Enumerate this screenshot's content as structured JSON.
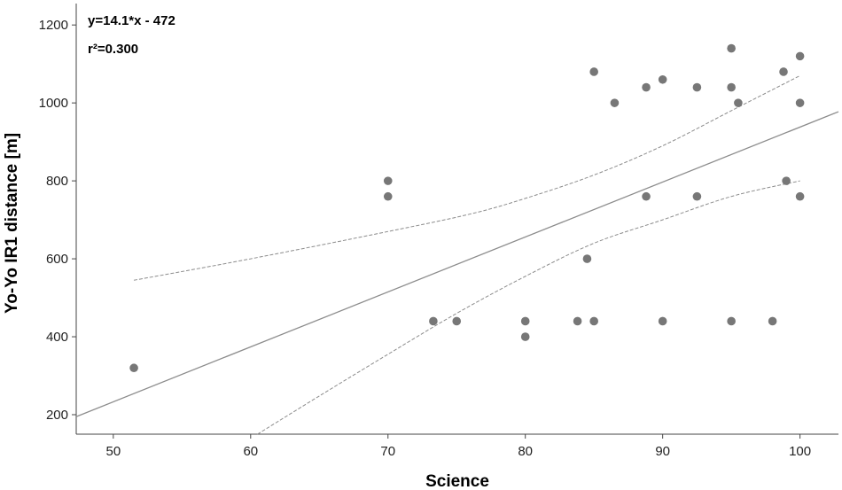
{
  "chart_data": {
    "type": "scatter",
    "xlabel": "Science",
    "ylabel": "Yo-Yo IR1 distance [m]",
    "xlim": [
      47.3,
      102.8
    ],
    "ylim": [
      150,
      1255
    ],
    "xticks": [
      50,
      60,
      70,
      80,
      90,
      100
    ],
    "yticks": [
      200,
      400,
      600,
      800,
      1000,
      1200
    ],
    "annotations": [
      "y=14.1*x - 472",
      "r²=0.300"
    ],
    "regression": {
      "slope": 14.1,
      "intercept": -472
    },
    "points": [
      {
        "x": 51.5,
        "y": 320
      },
      {
        "x": 70,
        "y": 800
      },
      {
        "x": 70,
        "y": 760
      },
      {
        "x": 73.3,
        "y": 440
      },
      {
        "x": 75,
        "y": 440
      },
      {
        "x": 80,
        "y": 440
      },
      {
        "x": 80,
        "y": 400
      },
      {
        "x": 83.8,
        "y": 440
      },
      {
        "x": 84.5,
        "y": 600
      },
      {
        "x": 85,
        "y": 1080
      },
      {
        "x": 85,
        "y": 440
      },
      {
        "x": 86.5,
        "y": 1000
      },
      {
        "x": 88.8,
        "y": 1040
      },
      {
        "x": 88.8,
        "y": 760
      },
      {
        "x": 90,
        "y": 1060
      },
      {
        "x": 90,
        "y": 440
      },
      {
        "x": 92.5,
        "y": 1040
      },
      {
        "x": 92.5,
        "y": 760
      },
      {
        "x": 95,
        "y": 1140
      },
      {
        "x": 95,
        "y": 1040
      },
      {
        "x": 95,
        "y": 440
      },
      {
        "x": 95.5,
        "y": 1000
      },
      {
        "x": 98,
        "y": 440
      },
      {
        "x": 98.8,
        "y": 1080
      },
      {
        "x": 99,
        "y": 800
      },
      {
        "x": 100,
        "y": 1120
      },
      {
        "x": 100,
        "y": 1000
      },
      {
        "x": 100,
        "y": 760
      }
    ],
    "confidence_upper": [
      {
        "x": 51.5,
        "y": 545
      },
      {
        "x": 60,
        "y": 600
      },
      {
        "x": 70,
        "y": 670
      },
      {
        "x": 76,
        "y": 715
      },
      {
        "x": 80,
        "y": 755
      },
      {
        "x": 85,
        "y": 815
      },
      {
        "x": 90,
        "y": 890
      },
      {
        "x": 95,
        "y": 980
      },
      {
        "x": 100,
        "y": 1070
      }
    ],
    "confidence_lower": [
      {
        "x": 60.5,
        "y": 150
      },
      {
        "x": 65,
        "y": 248
      },
      {
        "x": 70,
        "y": 355
      },
      {
        "x": 75,
        "y": 460
      },
      {
        "x": 80,
        "y": 555
      },
      {
        "x": 85,
        "y": 640
      },
      {
        "x": 90,
        "y": 700
      },
      {
        "x": 95,
        "y": 760
      },
      {
        "x": 100,
        "y": 800
      }
    ],
    "grid": false,
    "colors": {
      "points": "#777777",
      "fit_line": "#8c8c8c",
      "ci_line": "#8c8c8c",
      "axis": "#444444"
    }
  }
}
